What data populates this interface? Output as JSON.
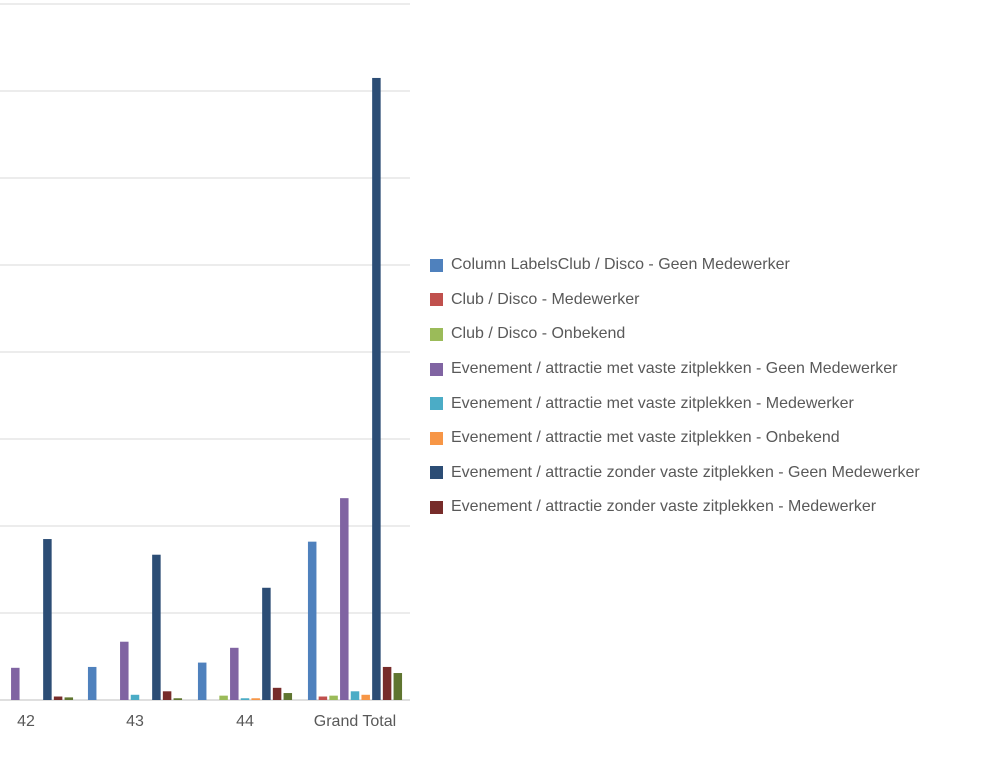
{
  "chart_data": {
    "type": "bar",
    "categories": [
      "42",
      "43",
      "44",
      "Grand Total"
    ],
    "series": [
      {
        "name": "Column LabelsClub / Disco - Geen Medewerker",
        "color": "#4f81bd",
        "values": [
          2,
          3.8,
          4.3,
          18.2
        ]
      },
      {
        "name": "Club / Disco - Medewerker",
        "color": "#c0504d",
        "values": [
          0,
          0,
          0,
          0.4
        ]
      },
      {
        "name": "Club / Disco - Onbekend",
        "color": "#9bbb59",
        "values": [
          0,
          0,
          0.5,
          0.5
        ]
      },
      {
        "name": "Evenement / attractie met vaste zitplekken - Geen Medewerker",
        "color": "#8064a2",
        "values": [
          3.7,
          6.7,
          6.0,
          23.2
        ]
      },
      {
        "name": "Evenement / attractie met vaste zitplekken - Medewerker",
        "color": "#4bacc6",
        "values": [
          0,
          0.6,
          0.2,
          1
        ]
      },
      {
        "name": "Evenement / attractie met vaste zitplekken - Onbekend",
        "color": "#f79646",
        "values": [
          0,
          0,
          0.2,
          0.6
        ]
      },
      {
        "name": "Evenement / attractie zonder vaste zitplekken - Geen Medewerker",
        "color": "#2c4d75",
        "values": [
          18.5,
          16.7,
          12.9,
          71.5
        ]
      },
      {
        "name": "Evenement / attractie zonder vaste zitplekken - Medewerker",
        "color": "#772c2a",
        "values": [
          0.4,
          1,
          1.4,
          3.8
        ]
      },
      {
        "name": "",
        "color": "#5f7530",
        "values": [
          0.3,
          0.2,
          0.8,
          3.1
        ]
      }
    ],
    "ylim": [
      0,
      80
    ],
    "grid": true,
    "legend_position": "right"
  }
}
